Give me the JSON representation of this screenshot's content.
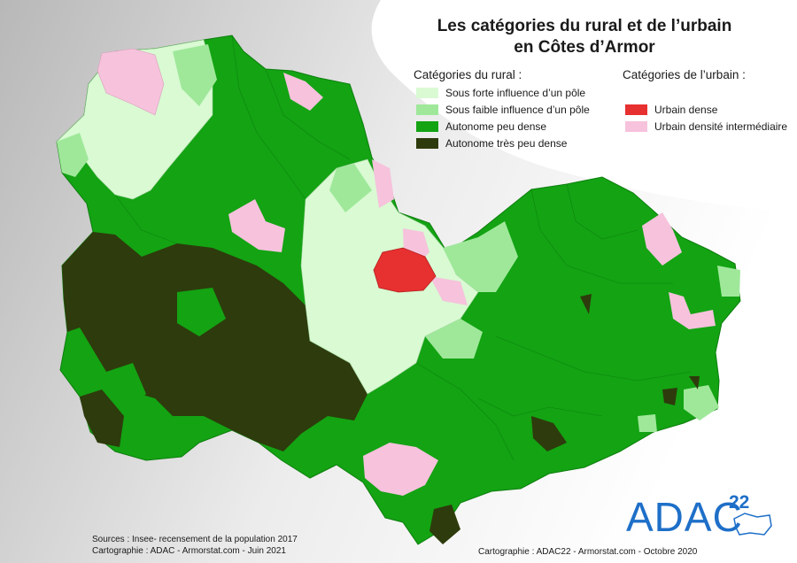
{
  "title_line1": "Les catégories du rural et de l’urbain",
  "title_line2": "en Côtes d’Armor",
  "legend": {
    "rural_heading": "Catégories du rural :",
    "urban_heading": "Catégories de l’urbain :",
    "rural_items": [
      {
        "label": "Sous forte influence d’un pôle",
        "color": "#d9fad3"
      },
      {
        "label": "Sous faible influence d’un pôle",
        "color": "#9fe89a"
      },
      {
        "label": "Autonome peu dense",
        "color": "#13a313"
      },
      {
        "label": "Autonome très peu dense",
        "color": "#2e3b0c"
      }
    ],
    "urban_items": [
      {
        "label": "Urbain dense",
        "color": "#e73030"
      },
      {
        "label": "Urbain densité intermédiaire",
        "color": "#f6c2dc"
      }
    ]
  },
  "credits": {
    "sources": "Sources : Insee- recensement de la population 2017",
    "carto_left": "Cartographie : ADAC - Armorstat.com - Juin 2021",
    "carto_right": "Cartographie : ADAC22 - Armorstat.com - Octobre 2020"
  },
  "logo": {
    "text": "ADAC",
    "number": "22"
  }
}
